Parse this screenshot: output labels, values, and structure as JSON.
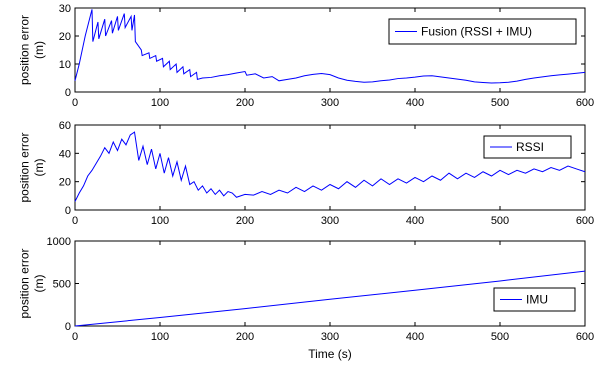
{
  "chart_data": [
    {
      "type": "line",
      "title": "",
      "xlabel": "",
      "ylabel": "position error\n(m)",
      "xlim": [
        0,
        600
      ],
      "ylim": [
        0,
        30
      ],
      "xticks": [
        0,
        100,
        200,
        300,
        400,
        500,
        600
      ],
      "yticks": [
        0,
        10,
        20,
        30
      ],
      "legend": {
        "placement": "top-right"
      },
      "color": "#0000ff",
      "series": [
        {
          "name": "Fusion (RSSI + IMU)",
          "x": [
            0,
            5,
            12,
            20,
            21,
            27,
            28,
            35,
            36,
            43,
            44,
            50,
            51,
            58,
            59,
            66,
            67,
            70,
            71,
            78,
            79,
            87,
            88,
            95,
            96,
            103,
            104,
            111,
            112,
            119,
            120,
            127,
            128,
            135,
            136,
            143,
            144,
            150,
            160,
            170,
            180,
            190,
            200,
            202,
            212,
            222,
            232,
            240,
            250,
            260,
            270,
            280,
            290,
            300,
            310,
            320,
            330,
            340,
            350,
            360,
            370,
            380,
            390,
            400,
            410,
            420,
            430,
            440,
            450,
            460,
            470,
            480,
            490,
            500,
            510,
            520,
            530,
            540,
            550,
            560,
            570,
            580,
            590,
            600
          ],
          "y": [
            4,
            10,
            20,
            29.5,
            18,
            25,
            19,
            26,
            20,
            25.5,
            21,
            27,
            22,
            28,
            23,
            27,
            22,
            27.5,
            18,
            15,
            13,
            14,
            12,
            13,
            11,
            12,
            9,
            11,
            8,
            10,
            7,
            9,
            6.5,
            8,
            5.5,
            7,
            4.5,
            5,
            5.2,
            5.8,
            6.2,
            6.8,
            7.3,
            6.0,
            6.5,
            5.0,
            5.5,
            4.0,
            4.5,
            5.0,
            5.8,
            6.3,
            6.6,
            6.2,
            5.0,
            4.2,
            3.8,
            3.5,
            3.6,
            4.0,
            4.3,
            4.8,
            5.0,
            5.3,
            5.7,
            5.8,
            5.4,
            5.0,
            4.6,
            4.2,
            3.6,
            3.4,
            3.2,
            3.3,
            3.5,
            3.9,
            4.5,
            5.0,
            5.4,
            5.8,
            6.1,
            6.4,
            6.7,
            7.0
          ]
        }
      ]
    },
    {
      "type": "line",
      "title": "",
      "xlabel": "",
      "ylabel": "position error\n(m)",
      "xlim": [
        0,
        600
      ],
      "ylim": [
        0,
        60
      ],
      "xticks": [
        0,
        100,
        200,
        300,
        400,
        500,
        600
      ],
      "yticks": [
        0,
        20,
        40,
        60
      ],
      "legend": {
        "placement": "top-right"
      },
      "color": "#0000ff",
      "series": [
        {
          "name": "RSSI",
          "x": [
            0,
            5,
            10,
            15,
            20,
            25,
            30,
            35,
            40,
            45,
            50,
            55,
            60,
            65,
            70,
            75,
            80,
            85,
            90,
            95,
            100,
            105,
            110,
            115,
            120,
            125,
            130,
            135,
            140,
            145,
            150,
            155,
            160,
            165,
            170,
            175,
            180,
            185,
            190,
            200,
            210,
            220,
            230,
            240,
            250,
            260,
            270,
            280,
            290,
            300,
            310,
            320,
            330,
            340,
            350,
            360,
            370,
            380,
            390,
            400,
            410,
            420,
            430,
            440,
            450,
            460,
            470,
            480,
            490,
            500,
            510,
            520,
            530,
            540,
            550,
            560,
            570,
            580,
            590,
            600
          ],
          "y": [
            6,
            12,
            17,
            24,
            28,
            33,
            38,
            44,
            40,
            48,
            42,
            50,
            46,
            53,
            55,
            35,
            45,
            32,
            43,
            29,
            40,
            26,
            37,
            24,
            34,
            21,
            31,
            18,
            20,
            14,
            17,
            12,
            15,
            11,
            14,
            10,
            13,
            12,
            9,
            11,
            10.5,
            13,
            11,
            14,
            12,
            16,
            13,
            17,
            14,
            18,
            15,
            20,
            16,
            21,
            17,
            22,
            18,
            22,
            19,
            23,
            20,
            24,
            21,
            26,
            22,
            26,
            23,
            27,
            24,
            28,
            25,
            28,
            26,
            29,
            27,
            30,
            28,
            31,
            29,
            27
          ]
        }
      ]
    },
    {
      "type": "line",
      "title": "",
      "xlabel": "Time (s)",
      "ylabel": "position error\n(m)",
      "xlim": [
        0,
        600
      ],
      "ylim": [
        0,
        1000
      ],
      "xticks": [
        0,
        100,
        200,
        300,
        400,
        500,
        600
      ],
      "yticks": [
        0,
        500,
        1000
      ],
      "legend": {
        "placement": "bottom-right"
      },
      "color": "#0000ff",
      "series": [
        {
          "name": "IMU",
          "x": [
            0,
            100,
            200,
            300,
            400,
            500,
            600
          ],
          "y": [
            0,
            100,
            205,
            315,
            420,
            530,
            645
          ]
        }
      ]
    }
  ]
}
